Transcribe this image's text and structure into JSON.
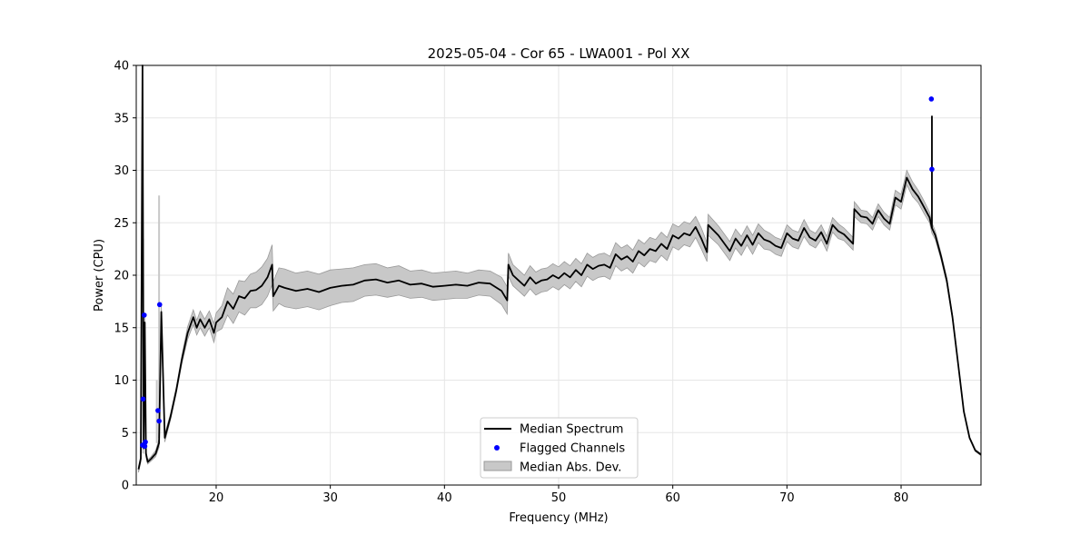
{
  "chart_data": {
    "type": "line",
    "title": "2025-05-04 - Cor 65 - LWA001 - Pol XX",
    "xlabel": "Frequency (MHz)",
    "ylabel": "Power (CPU)",
    "xlim": [
      13.0,
      87.0
    ],
    "ylim": [
      0,
      40
    ],
    "xticks": [
      20,
      30,
      40,
      50,
      60,
      70,
      80
    ],
    "yticks": [
      0,
      5,
      10,
      15,
      20,
      25,
      30,
      35,
      40
    ],
    "grid": true,
    "legend_position": "bottom-center",
    "colors": {
      "median": "#000000",
      "flagged": "#0000ff",
      "mad_fill": "#c8c8c8",
      "mad_edge": "#9a9a9a"
    },
    "series": [
      {
        "name": "Median Spectrum",
        "kind": "line",
        "x": [
          13.2,
          13.4,
          13.55,
          13.65,
          13.75,
          13.85,
          14.0,
          14.3,
          14.7,
          15.0,
          15.2,
          15.5,
          16.0,
          16.5,
          17.0,
          17.5,
          18.0,
          18.3,
          18.6,
          19.0,
          19.4,
          19.8,
          20.0,
          20.5,
          21.0,
          21.5,
          22.0,
          22.5,
          23.0,
          23.5,
          24.0,
          24.5,
          24.9,
          25.0,
          25.5,
          26.0,
          27.0,
          28.0,
          29.0,
          30.0,
          31.0,
          32.0,
          33.0,
          34.0,
          35.0,
          36.0,
          37.0,
          38.0,
          39.0,
          40.0,
          41.0,
          42.0,
          43.0,
          44.0,
          45.0,
          45.5,
          45.6,
          46.0,
          46.5,
          47.0,
          47.5,
          48.0,
          48.5,
          49.0,
          49.5,
          50.0,
          50.5,
          51.0,
          51.5,
          52.0,
          52.5,
          53.0,
          53.5,
          54.0,
          54.5,
          55.0,
          55.5,
          56.0,
          56.5,
          57.0,
          57.5,
          58.0,
          58.5,
          59.0,
          59.5,
          60.0,
          60.5,
          61.0,
          61.5,
          62.0,
          62.5,
          63.0,
          63.1,
          64.0,
          65.0,
          65.5,
          66.0,
          66.5,
          67.0,
          67.5,
          68.0,
          68.5,
          69.0,
          69.5,
          70.0,
          70.5,
          71.0,
          71.5,
          72.0,
          72.5,
          73.0,
          73.5,
          74.0,
          74.5,
          75.0,
          75.8,
          75.9,
          76.5,
          77.0,
          77.5,
          78.0,
          78.5,
          79.0,
          79.5,
          80.0,
          80.5,
          81.0,
          81.5,
          82.0,
          82.5,
          82.7,
          83.0,
          83.5,
          84.0,
          84.5,
          85.0,
          85.5,
          86.0,
          86.5,
          87.0
        ],
        "y": [
          1.5,
          2.5,
          40.0,
          3.5,
          15.5,
          3.0,
          2.2,
          2.5,
          3.0,
          4.0,
          16.5,
          4.5,
          6.5,
          9.0,
          12.0,
          14.5,
          16.0,
          15.0,
          15.8,
          15.0,
          15.8,
          14.5,
          15.5,
          16.0,
          17.5,
          16.8,
          18.0,
          17.8,
          18.5,
          18.6,
          19.0,
          19.8,
          21.0,
          18.0,
          19.0,
          18.8,
          18.5,
          18.7,
          18.4,
          18.8,
          19.0,
          19.1,
          19.5,
          19.6,
          19.3,
          19.5,
          19.1,
          19.2,
          18.9,
          19.0,
          19.1,
          19.0,
          19.3,
          19.2,
          18.5,
          17.6,
          21.0,
          20.0,
          19.5,
          19.0,
          19.8,
          19.2,
          19.5,
          19.6,
          20.0,
          19.7,
          20.2,
          19.8,
          20.5,
          20.0,
          21.0,
          20.6,
          20.9,
          21.0,
          20.7,
          22.0,
          21.5,
          21.8,
          21.3,
          22.3,
          21.9,
          22.5,
          22.3,
          23.0,
          22.5,
          23.8,
          23.5,
          24.0,
          23.8,
          24.6,
          23.5,
          22.2,
          24.8,
          23.8,
          22.3,
          23.5,
          22.8,
          23.8,
          22.9,
          24.0,
          23.4,
          23.2,
          22.8,
          22.6,
          24.0,
          23.5,
          23.3,
          24.5,
          23.6,
          23.3,
          24.1,
          23.0,
          24.8,
          24.2,
          23.9,
          23.0,
          26.3,
          25.6,
          25.5,
          24.9,
          26.2,
          25.4,
          24.9,
          27.4,
          27.0,
          29.3,
          28.2,
          27.5,
          26.5,
          25.5,
          24.5,
          23.8,
          21.8,
          19.5,
          16.0,
          11.5,
          7.0,
          4.5,
          3.3,
          2.9
        ],
        "mad": [
          0.3,
          0.3,
          0.5,
          0.5,
          0.6,
          0.3,
          0.2,
          0.2,
          0.3,
          0.4,
          0.6,
          0.4,
          0.3,
          0.3,
          0.4,
          0.6,
          0.7,
          0.7,
          0.8,
          0.8,
          0.8,
          0.9,
          0.9,
          1.1,
          1.3,
          1.4,
          1.5,
          1.6,
          1.6,
          1.7,
          1.8,
          1.8,
          1.9,
          1.4,
          1.7,
          1.8,
          1.7,
          1.7,
          1.7,
          1.7,
          1.6,
          1.6,
          1.5,
          1.5,
          1.4,
          1.4,
          1.3,
          1.3,
          1.3,
          1.3,
          1.3,
          1.2,
          1.2,
          1.2,
          1.3,
          1.3,
          1.1,
          1.0,
          1.0,
          1.0,
          1.1,
          1.1,
          1.1,
          1.1,
          1.1,
          1.1,
          1.1,
          1.1,
          1.1,
          1.1,
          1.1,
          1.1,
          1.1,
          1.1,
          1.1,
          1.1,
          1.1,
          1.1,
          1.1,
          1.1,
          1.1,
          1.1,
          1.1,
          1.1,
          1.1,
          1.1,
          1.1,
          1.1,
          1.1,
          1.0,
          1.0,
          0.9,
          1.0,
          0.9,
          0.9,
          0.9,
          0.9,
          0.9,
          0.9,
          0.9,
          0.9,
          0.8,
          0.8,
          0.8,
          0.8,
          0.8,
          0.8,
          0.8,
          0.7,
          0.7,
          0.7,
          0.7,
          0.7,
          0.7,
          0.6,
          0.6,
          0.7,
          0.6,
          0.6,
          0.6,
          0.6,
          0.6,
          0.6,
          0.7,
          0.7,
          0.7,
          0.7,
          0.6,
          0.6,
          0.5,
          0.5,
          0.4,
          0.3,
          0.3,
          0.2,
          0.2,
          0.1,
          0.1,
          0.1,
          0.1
        ]
      },
      {
        "name": "Flagged Channels",
        "kind": "points",
        "x": [
          13.55,
          13.6,
          13.7,
          13.75,
          13.8,
          14.9,
          15.0,
          15.05
        ],
        "y": [
          3.8,
          8.2,
          16.2,
          3.7,
          4.1,
          7.1,
          6.1,
          17.2
        ]
      },
      {
        "name": "Flagged Channels",
        "kind": "points",
        "x": [
          82.65,
          82.7
        ],
        "y": [
          36.8,
          30.1
        ]
      },
      {
        "name": "Median Abs. Dev.",
        "kind": "band"
      }
    ],
    "spikes": [
      {
        "x": 13.6,
        "low": 3.0,
        "high": 23.5
      },
      {
        "x": 15.0,
        "low": 4.5,
        "high": 27.6
      },
      {
        "x": 14.8,
        "low": 4.0,
        "high": 10.0
      },
      {
        "x": 82.7,
        "low": 24.5,
        "high": 35.2
      }
    ]
  }
}
